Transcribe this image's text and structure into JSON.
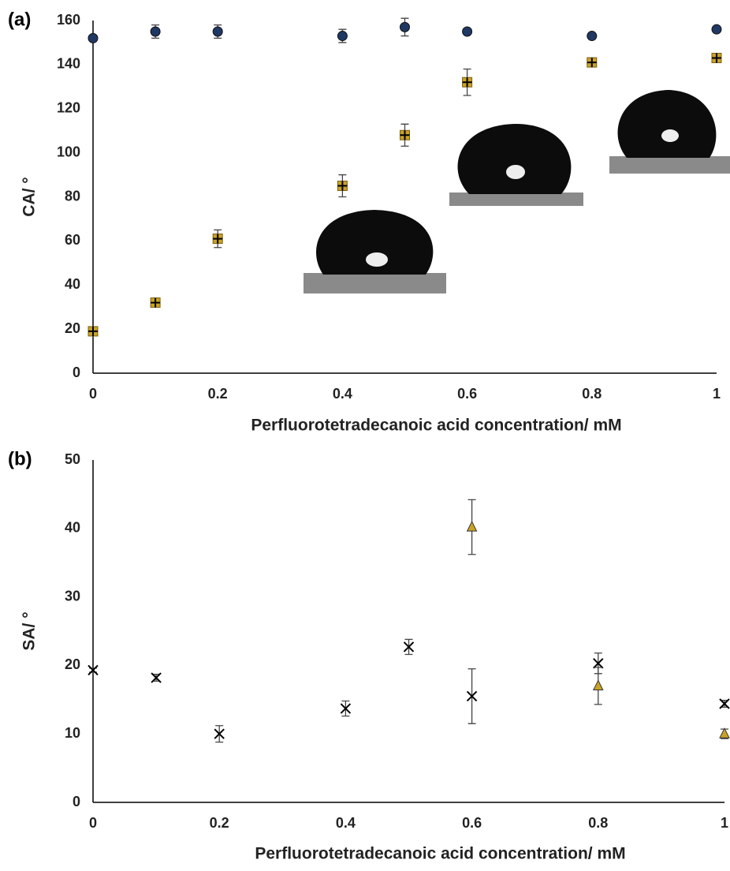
{
  "chart_data": [
    {
      "type": "scatter",
      "panel_label": "(a)",
      "x_label": "Perfluorotetradecanoic acid concentration/ mM",
      "y_label": "CA/ °",
      "xlim": [
        0,
        1
      ],
      "xticks": [
        0,
        0.2,
        0.4,
        0.6,
        0.8,
        1
      ],
      "ylim": [
        0,
        160
      ],
      "yticks": [
        0,
        20,
        40,
        60,
        80,
        100,
        120,
        140,
        160
      ],
      "grid": false,
      "series": [
        {
          "marker": "circle",
          "color": "#1f3864",
          "x": [
            0,
            0.1,
            0.2,
            0.4,
            0.5,
            0.6,
            0.8,
            1
          ],
          "values": [
            152,
            155,
            155,
            153,
            157,
            155,
            153,
            156
          ],
          "errors": [
            1,
            3,
            3,
            3,
            4,
            1,
            1,
            1
          ]
        },
        {
          "marker": "square-plus",
          "color": "#c9a227",
          "x": [
            0,
            0.1,
            0.2,
            0.4,
            0.5,
            0.6,
            0.8,
            1
          ],
          "values": [
            19,
            32,
            61,
            85,
            108,
            132,
            141,
            143
          ],
          "errors": [
            2,
            2,
            4,
            5,
            5,
            6,
            2,
            2
          ]
        }
      ]
    },
    {
      "type": "scatter",
      "panel_label": "(b)",
      "x_label": "Perfluorotetradecanoic acid concentration/ mM",
      "y_label": "SA/ °",
      "xlim": [
        0,
        1
      ],
      "xticks": [
        0,
        0.2,
        0.4,
        0.6,
        0.8,
        1
      ],
      "ylim": [
        0,
        50
      ],
      "yticks": [
        0,
        10,
        20,
        30,
        40,
        50
      ],
      "grid": false,
      "series": [
        {
          "marker": "x",
          "color": "#000000",
          "x": [
            0,
            0.1,
            0.2,
            0.4,
            0.5,
            0.6,
            0.8,
            1
          ],
          "values": [
            19.3,
            18.2,
            10,
            13.7,
            22.7,
            15.5,
            20.3,
            14.4
          ],
          "errors": [
            0.3,
            0.5,
            1.2,
            1.1,
            1.1,
            4,
            1.5,
            0.5
          ]
        },
        {
          "marker": "triangle",
          "color": "#c9a227",
          "x": [
            0.6,
            0.8,
            1
          ],
          "values": [
            40.2,
            17,
            10
          ],
          "errors": [
            4,
            2.7,
            0.7
          ]
        }
      ]
    }
  ]
}
